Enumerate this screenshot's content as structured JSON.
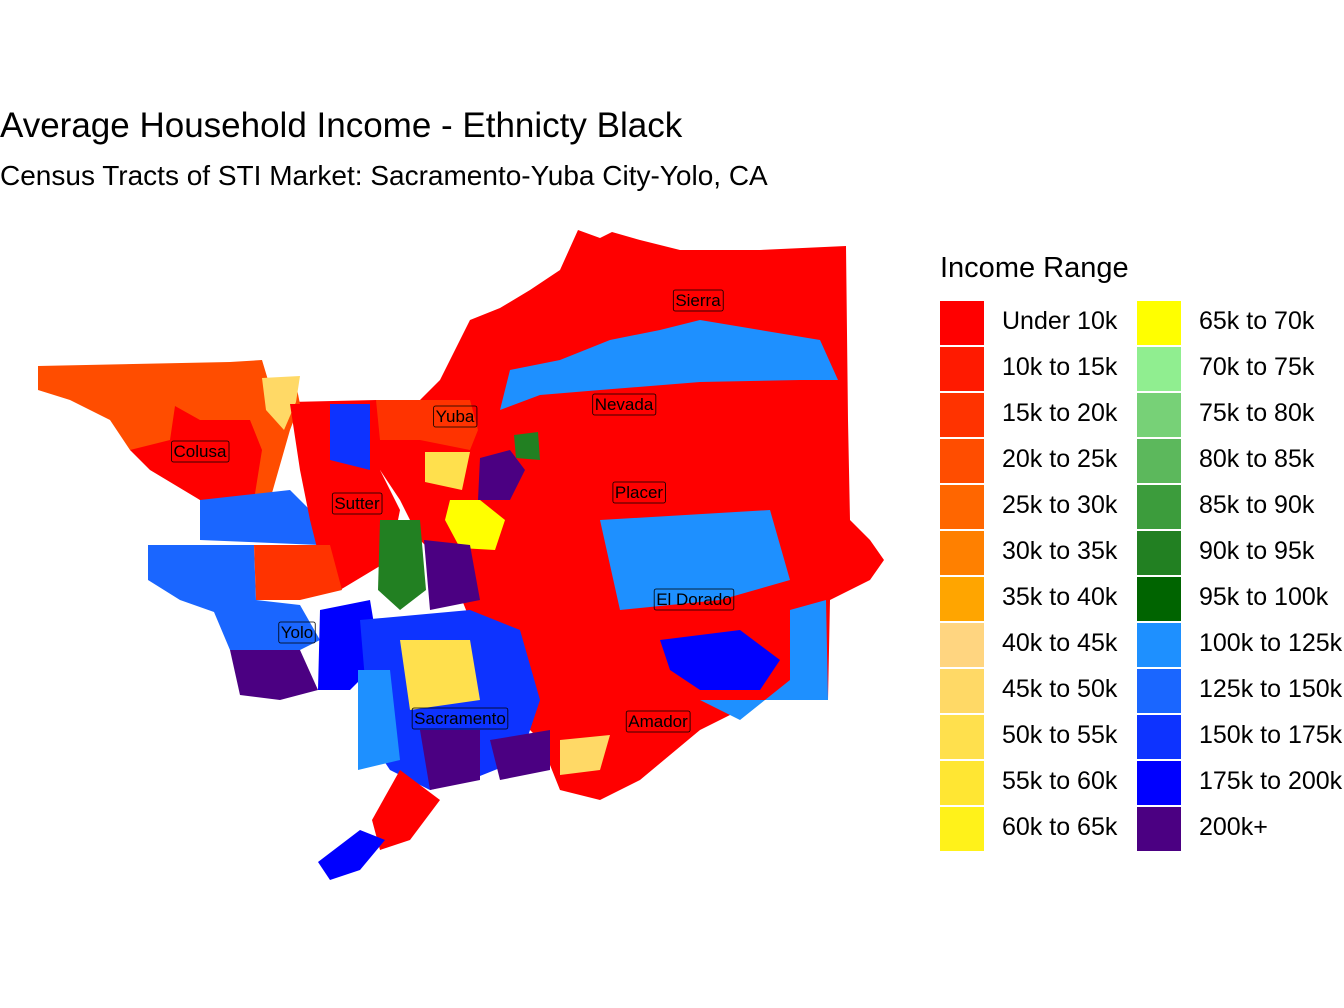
{
  "title": "Average Household Income - Ethnicty Black",
  "subtitle": "Census Tracts of STI Market: Sacramento-Yuba City-Yolo, CA",
  "legend": {
    "title": "Income Range",
    "items": [
      {
        "label": "Under 10k",
        "color": "#FF0000"
      },
      {
        "label": "10k to 15k",
        "color": "#FF1A00"
      },
      {
        "label": "15k to 20k",
        "color": "#FF3300"
      },
      {
        "label": "20k to 25k",
        "color": "#FF4D00"
      },
      {
        "label": "25k to 30k",
        "color": "#FF6600"
      },
      {
        "label": "30k to 35k",
        "color": "#FF8000"
      },
      {
        "label": "35k to 40k",
        "color": "#FFA500"
      },
      {
        "label": "40k to 45k",
        "color": "#FFD580"
      },
      {
        "label": "45k to 50k",
        "color": "#FFD966"
      },
      {
        "label": "50k to 55k",
        "color": "#FFE04D"
      },
      {
        "label": "55k to 60k",
        "color": "#FFE633"
      },
      {
        "label": "60k to 65k",
        "color": "#FFF21A"
      },
      {
        "label": "65k to 70k",
        "color": "#FFFF00"
      },
      {
        "label": "70k to 75k",
        "color": "#90EE90"
      },
      {
        "label": "75k to 80k",
        "color": "#77D177"
      },
      {
        "label": "80k to 85k",
        "color": "#5CB85C"
      },
      {
        "label": "85k to 90k",
        "color": "#3C9C3C"
      },
      {
        "label": "90k to 95k",
        "color": "#228022"
      },
      {
        "label": "95k to 100k",
        "color": "#006400"
      },
      {
        "label": "100k to 125k",
        "color": "#1E90FF"
      },
      {
        "label": "125k to 150k",
        "color": "#1A66FF"
      },
      {
        "label": "150k to 175k",
        "color": "#0D33FF"
      },
      {
        "label": "175k to 200k",
        "color": "#0000FF"
      },
      {
        "label": "200k+",
        "color": "#4B0082"
      }
    ]
  },
  "counties": [
    "Sierra",
    "Nevada",
    "Yuba",
    "Colusa",
    "Sutter",
    "Placer",
    "El Dorado",
    "Yolo",
    "Sacramento",
    "Amador"
  ]
}
